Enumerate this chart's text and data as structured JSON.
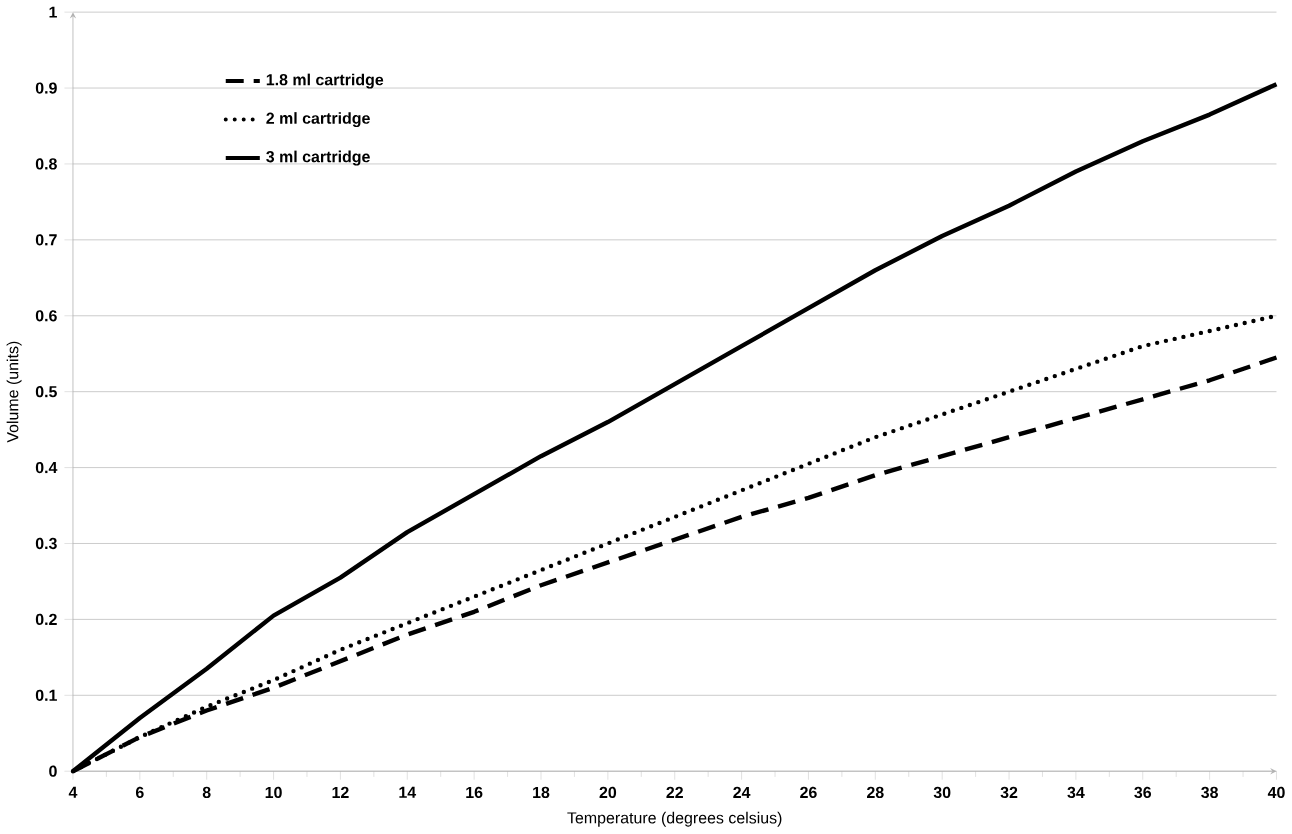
{
  "chart_data": {
    "type": "line",
    "xlabel": "Temperature  (degrees celsius)",
    "ylabel": "Volume (units)",
    "x": [
      4,
      6,
      8,
      10,
      12,
      14,
      16,
      18,
      20,
      22,
      24,
      26,
      28,
      30,
      32,
      34,
      36,
      38,
      40
    ],
    "series": [
      {
        "name": "1.8 ml cartridge",
        "color": "#000000",
        "line_style": "dashed",
        "values": [
          0,
          0.045,
          0.08,
          0.11,
          0.145,
          0.18,
          0.21,
          0.245,
          0.275,
          0.305,
          0.335,
          0.36,
          0.39,
          0.415,
          0.44,
          0.465,
          0.49,
          0.515,
          0.545
        ]
      },
      {
        "name": "2 ml cartridge",
        "color": "#000000",
        "line_style": "dotted",
        "values": [
          0,
          0.045,
          0.085,
          0.12,
          0.16,
          0.195,
          0.23,
          0.265,
          0.3,
          0.335,
          0.37,
          0.405,
          0.44,
          0.47,
          0.5,
          0.53,
          0.56,
          0.58,
          0.6
        ]
      },
      {
        "name": "3 ml cartridge",
        "color": "#000000",
        "line_style": "solid",
        "values": [
          0,
          0.07,
          0.135,
          0.205,
          0.255,
          0.315,
          0.365,
          0.415,
          0.46,
          0.51,
          0.56,
          0.61,
          0.66,
          0.705,
          0.745,
          0.79,
          0.83,
          0.865,
          0.905
        ]
      }
    ],
    "xlim": [
      4,
      40
    ],
    "ylim": [
      0,
      1
    ],
    "xticks": [
      4,
      6,
      8,
      10,
      12,
      14,
      16,
      18,
      20,
      22,
      24,
      26,
      28,
      30,
      32,
      34,
      36,
      38,
      40
    ],
    "yticks": [
      0,
      0.1,
      0.2,
      0.3,
      0.4,
      0.5,
      0.6,
      0.7,
      0.8,
      0.9,
      1
    ],
    "grid": "y",
    "legend": "top left",
    "marker": "none"
  }
}
